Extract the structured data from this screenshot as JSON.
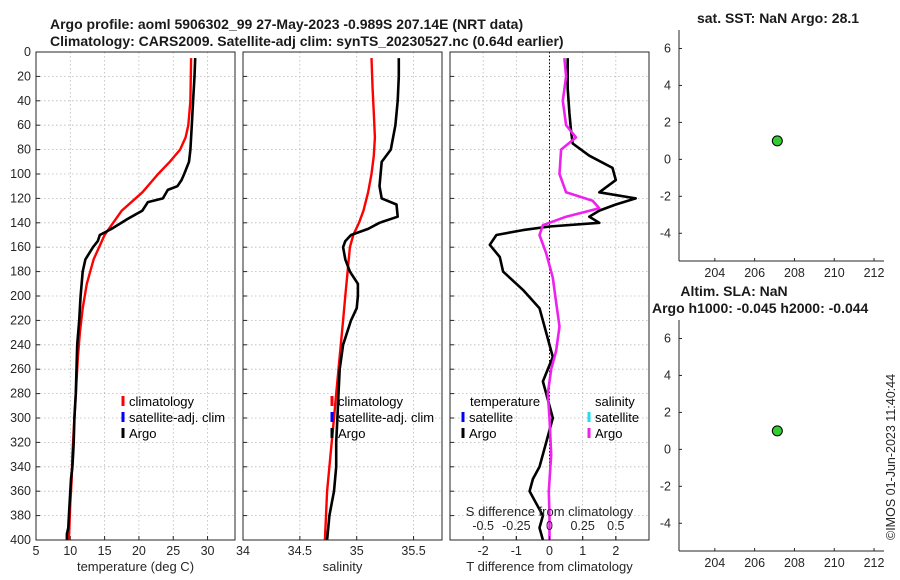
{
  "titles": {
    "line1": "Argo profile: aoml 5906302_99 27-May-2023 -0.989S 207.14E (NRT data)",
    "line2": "Climatology: CARS2009. Satellite-adj clim: synTS_20230527.nc (0.64d earlier)",
    "sst": "sat. SST: NaN Argo: 28.1",
    "sla1": "Altim. SLA: NaN",
    "sla2": "Argo h1000: -0.045 h2000: -0.044"
  },
  "watermark": "©IMOS 01-Jun-2023 11:40:44",
  "colors": {
    "climatology": "#ff0000",
    "satellite": "#0000ff",
    "argo": "#000000",
    "sal_satellite": "#22ddee",
    "sal_argo": "#ee22ee",
    "marker": "#33cc33"
  },
  "chart_data": [
    {
      "type": "line",
      "id": "temperature",
      "xlabel": "temperature (deg C)",
      "ylabel": "",
      "xlim": [
        5,
        34
      ],
      "ylim": [
        400,
        0
      ],
      "xticks": [
        5,
        10,
        15,
        20,
        25,
        30
      ],
      "yticks": [
        0,
        20,
        40,
        60,
        80,
        100,
        120,
        140,
        160,
        180,
        200,
        220,
        240,
        260,
        280,
        300,
        320,
        340,
        360,
        380,
        400
      ],
      "grid": true,
      "legend": [
        "climatology",
        "satellite-adj. clim",
        "Argo"
      ],
      "series": [
        {
          "name": "climatology",
          "color": "#ff0000",
          "x": [
            27.6,
            27.5,
            27.2,
            26.8,
            26.0,
            24.5,
            22.8,
            20.5,
            17.5,
            15.0,
            13.4,
            12.4,
            11.8,
            11.4,
            11.1,
            10.9,
            10.7,
            10.5,
            10.3,
            10.2,
            10.0,
            9.8
          ],
          "y": [
            5,
            40,
            60,
            70,
            80,
            90,
            100,
            115,
            130,
            150,
            170,
            190,
            210,
            230,
            250,
            270,
            290,
            310,
            330,
            350,
            370,
            400
          ]
        },
        {
          "name": "Argo",
          "color": "#000000",
          "x": [
            28.2,
            28.1,
            27.9,
            27.7,
            27.5,
            27.3,
            26.6,
            26.2,
            25.6,
            24.2,
            23.5,
            21.3,
            20.5,
            18.3,
            16.0,
            14.3,
            14.0,
            13.3,
            12.2,
            11.8,
            11.5,
            11.3,
            11.0,
            10.9,
            10.8,
            10.6,
            10.5,
            10.4,
            10.3,
            10.1,
            10.0,
            9.9,
            9.8,
            9.7,
            9.5,
            9.5
          ],
          "y": [
            5,
            20,
            40,
            60,
            80,
            90,
            100,
            105,
            110,
            113,
            120,
            123,
            130,
            137,
            145,
            150,
            155,
            160,
            170,
            180,
            200,
            220,
            240,
            260,
            280,
            300,
            320,
            330,
            340,
            350,
            360,
            370,
            380,
            390,
            395,
            400
          ]
        }
      ]
    },
    {
      "type": "line",
      "id": "salinity",
      "xlabel": "salinity",
      "ylabel": "",
      "xlim": [
        34.0,
        35.75
      ],
      "ylim": [
        400,
        0
      ],
      "xticks": [
        34,
        34.5,
        35,
        35.5
      ],
      "xticklabels": [
        "34",
        "34.5",
        "35",
        "35.5"
      ],
      "grid": true,
      "legend": [
        "climatology",
        "satellite-adj. clim",
        "Argo"
      ],
      "series": [
        {
          "name": "climatology",
          "color": "#ff0000",
          "x": [
            35.13,
            35.14,
            35.15,
            35.16,
            35.15,
            35.13,
            35.1,
            35.06,
            35.02,
            34.97,
            34.94,
            34.92,
            34.9,
            34.88,
            34.86,
            34.84,
            34.82,
            34.8,
            34.78,
            34.76,
            34.74,
            34.72
          ],
          "y": [
            5,
            30,
            50,
            70,
            85,
            100,
            115,
            130,
            140,
            150,
            160,
            180,
            200,
            220,
            240,
            260,
            280,
            300,
            320,
            340,
            360,
            400
          ]
        },
        {
          "name": "Argo",
          "color": "#000000",
          "x": [
            35.37,
            35.37,
            35.36,
            35.34,
            35.3,
            35.22,
            35.2,
            35.22,
            35.35,
            35.36,
            35.2,
            35.1,
            34.95,
            34.9,
            34.88,
            34.9,
            34.94,
            35.01,
            35.01,
            35.0,
            34.95,
            34.88,
            34.85,
            34.84,
            34.83,
            34.82,
            34.82,
            34.81,
            34.8,
            34.78,
            34.76,
            34.74
          ],
          "y": [
            5,
            20,
            40,
            60,
            80,
            90,
            110,
            120,
            125,
            135,
            140,
            145,
            150,
            155,
            160,
            170,
            180,
            190,
            200,
            210,
            220,
            240,
            260,
            280,
            300,
            320,
            340,
            350,
            360,
            370,
            380,
            400
          ]
        }
      ]
    },
    {
      "type": "line",
      "id": "difference",
      "xlabel": "T difference from climatology",
      "xlabel2": "S difference from climatology",
      "xlim": [
        -3.0,
        3.0
      ],
      "ylim": [
        400,
        0
      ],
      "xticks": [
        -2,
        -1,
        0,
        1,
        2
      ],
      "xticks_top": [
        -0.5,
        -0.25,
        0,
        0.25,
        0.5
      ],
      "xticklabels_top": [
        "-0.5",
        "-0.25",
        "0",
        "0.25",
        "0.5"
      ],
      "grid": true,
      "zero_line": true,
      "legend_temperature": {
        "title": "temperature",
        "items": [
          "satellite",
          "Argo"
        ]
      },
      "legend_salinity": {
        "title": "salinity",
        "items": [
          "satellite",
          "Argo"
        ]
      },
      "series": [
        {
          "name": "T Argo - clim",
          "color": "#000000",
          "x": [
            0.55,
            0.55,
            0.6,
            0.65,
            0.7,
            1.2,
            1.9,
            2.0,
            1.5,
            2.6,
            2.0,
            1.5,
            1.2,
            1.5,
            0.0,
            -0.8,
            -1.6,
            -1.8,
            -1.5,
            -1.4,
            -0.8,
            -0.3,
            -0.1,
            0.1,
            -0.2,
            0.0,
            0.1,
            -0.1,
            -0.3,
            -0.5,
            -0.6,
            -0.4,
            -0.2,
            -0.3,
            -0.2
          ],
          "y": [
            5,
            30,
            50,
            65,
            75,
            85,
            95,
            105,
            115,
            120,
            125,
            130,
            135,
            140,
            143,
            146,
            150,
            158,
            168,
            180,
            195,
            210,
            230,
            250,
            270,
            290,
            300,
            320,
            340,
            350,
            360,
            370,
            380,
            390,
            400
          ]
        },
        {
          "name": "S Argo - clim",
          "color": "#ee22ee",
          "x": [
            0.45,
            0.5,
            0.4,
            0.5,
            0.8,
            0.35,
            0.3,
            0.5,
            1.3,
            1.5,
            0.5,
            -0.2,
            -0.3,
            -0.1,
            0.1,
            0.2,
            0.3,
            0.2,
            0.05,
            -0.05,
            0.0,
            0.05,
            -0.02,
            0.0,
            0.0
          ],
          "y": [
            5,
            20,
            40,
            60,
            70,
            80,
            100,
            115,
            122,
            128,
            135,
            142,
            150,
            165,
            185,
            205,
            225,
            245,
            260,
            280,
            300,
            330,
            360,
            380,
            400
          ]
        }
      ]
    },
    {
      "type": "scatter",
      "id": "sst",
      "title": "sat. SST: NaN Argo: 28.1",
      "xlim": [
        202.2,
        212.5
      ],
      "ylim": [
        -5.5,
        7.0
      ],
      "xticks": [
        204,
        206,
        208,
        210,
        212
      ],
      "yticks": [
        -4,
        -2,
        0,
        2,
        4,
        6
      ],
      "points": [
        {
          "x": 207.14,
          "y": 1.0
        }
      ]
    },
    {
      "type": "scatter",
      "id": "sla",
      "title": "Altim. SLA: NaN",
      "xlim": [
        202.2,
        212.5
      ],
      "ylim": [
        -5.5,
        7.0
      ],
      "xticks": [
        204,
        206,
        208,
        210,
        212
      ],
      "yticks": [
        -4,
        -2,
        0,
        2,
        4,
        6
      ],
      "points": [
        {
          "x": 207.14,
          "y": 1.0
        }
      ]
    }
  ]
}
